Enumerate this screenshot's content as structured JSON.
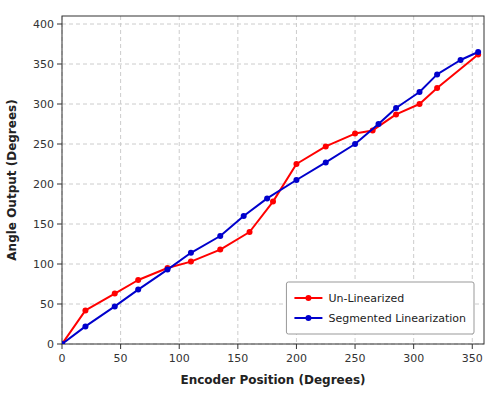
{
  "chart_data": {
    "type": "line",
    "x_label": "Encoder Position (Degrees)",
    "y_label": "Angle Output (Degrees)",
    "xlim": [
      0,
      360
    ],
    "ylim": [
      0,
      410
    ],
    "xticks": [
      0,
      50,
      100,
      150,
      200,
      250,
      300,
      350
    ],
    "yticks": [
      0,
      50,
      100,
      150,
      200,
      250,
      300,
      350,
      400
    ],
    "grid": true,
    "legend": "lower right",
    "series": [
      {
        "name": "Un-Linearized",
        "color": "#FF0000",
        "marker": "circle",
        "x": [
          0,
          20,
          45,
          65,
          90,
          110,
          135,
          160,
          180,
          200,
          225,
          250,
          265,
          285,
          305,
          320,
          355
        ],
        "values": [
          0,
          42,
          63,
          80,
          95,
          103,
          118,
          140,
          178,
          225,
          247,
          263,
          267,
          287,
          300,
          320,
          362
        ]
      },
      {
        "name": "Segmented Linearization",
        "color": "#0000CC",
        "marker": "circle",
        "x": [
          0,
          20,
          45,
          65,
          90,
          110,
          135,
          155,
          175,
          200,
          225,
          250,
          270,
          285,
          305,
          320,
          340,
          355
        ],
        "values": [
          0,
          22,
          47,
          68,
          93,
          114,
          135,
          160,
          182,
          205,
          227,
          250,
          275,
          295,
          315,
          337,
          355,
          365
        ]
      }
    ]
  }
}
